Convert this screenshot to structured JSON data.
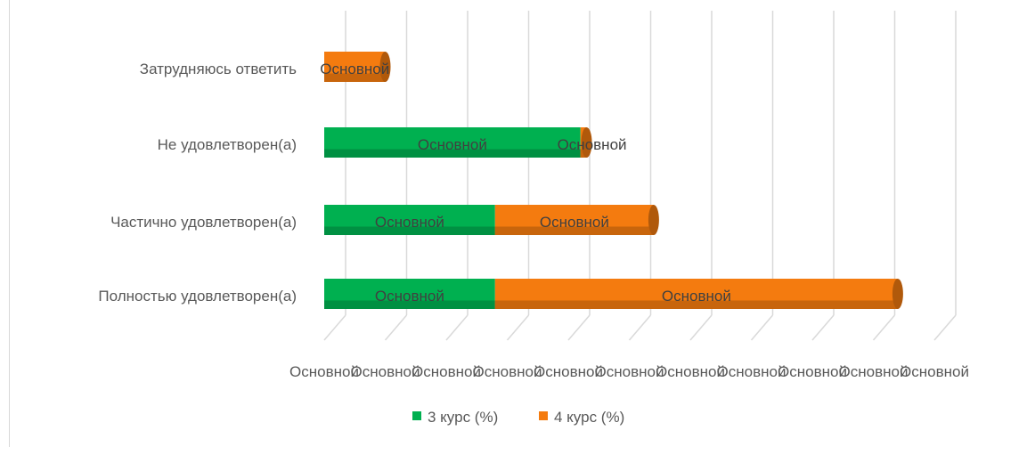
{
  "chart_data": {
    "type": "bar",
    "orientation": "horizontal",
    "stacked": true,
    "categories": [
      "Полностью удовлетворен(а)",
      "Частично удовлетворен(а)",
      "Не удовлетворен(а)",
      "Затрудняюсь ответить"
    ],
    "series": [
      {
        "name": "3 курс (%)",
        "color": "#00b050",
        "values": [
          14,
          14,
          21,
          0
        ]
      },
      {
        "name": "4 курс (%)",
        "color": "#f47b0f",
        "values": [
          33,
          13,
          0.5,
          5
        ]
      }
    ],
    "data_labels": [
      [
        "Основной",
        "Основной",
        "Основной",
        "Основной"
      ],
      [
        "Основной",
        "Основной",
        "Основной",
        "Основной"
      ]
    ],
    "xlim": [
      0,
      50
    ],
    "x_tick_step": 5,
    "x_tick_labels": [
      "Основной",
      "Основной",
      "Основной",
      "Основной",
      "Основной",
      "Основной",
      "Основной",
      "Основной",
      "Основной",
      "Основной",
      "Основной"
    ],
    "grid": true,
    "legend_position": "bottom"
  }
}
